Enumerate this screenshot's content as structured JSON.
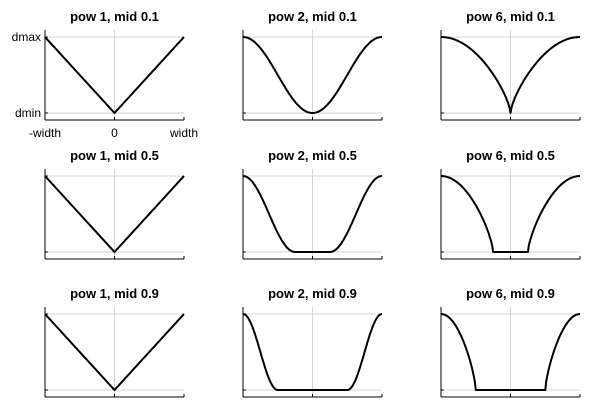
{
  "colors": {
    "curve": "#000000",
    "axis": "#000000",
    "grid": "#d4d4d4",
    "text": "#000000"
  },
  "chart_data": [
    {
      "type": "line",
      "title": "pow 1, mid 0.1",
      "power": 1,
      "mid": 0.1,
      "grid": true,
      "xlim": [
        -1,
        1
      ],
      "ylim": [
        0,
        1
      ],
      "x_tick_labels": [
        "-width",
        "0",
        "width"
      ],
      "y_tick_labels": [
        "dmin",
        "dmax"
      ]
    },
    {
      "type": "line",
      "title": "pow 2, mid 0.1",
      "power": 2,
      "mid": 0.1,
      "grid": true,
      "xlim": [
        -1,
        1
      ],
      "ylim": [
        0,
        1
      ]
    },
    {
      "type": "line",
      "title": "pow 6, mid 0.1",
      "power": 6,
      "mid": 0.1,
      "grid": true,
      "xlim": [
        -1,
        1
      ],
      "ylim": [
        0,
        1
      ]
    },
    {
      "type": "line",
      "title": "pow 1, mid 0.5",
      "power": 1,
      "mid": 0.5,
      "grid": true,
      "xlim": [
        -1,
        1
      ],
      "ylim": [
        0,
        1
      ]
    },
    {
      "type": "line",
      "title": "pow 2, mid 0.5",
      "power": 2,
      "mid": 0.5,
      "grid": true,
      "xlim": [
        -1,
        1
      ],
      "ylim": [
        0,
        1
      ]
    },
    {
      "type": "line",
      "title": "pow 6, mid 0.5",
      "power": 6,
      "mid": 0.5,
      "grid": true,
      "xlim": [
        -1,
        1
      ],
      "ylim": [
        0,
        1
      ]
    },
    {
      "type": "line",
      "title": "pow 1, mid 0.9",
      "power": 1,
      "mid": 0.9,
      "grid": true,
      "xlim": [
        -1,
        1
      ],
      "ylim": [
        0,
        1
      ]
    },
    {
      "type": "line",
      "title": "pow 2, mid 0.9",
      "power": 2,
      "mid": 0.9,
      "grid": true,
      "xlim": [
        -1,
        1
      ],
      "ylim": [
        0,
        1
      ]
    },
    {
      "type": "line",
      "title": "pow 6, mid 0.9",
      "power": 6,
      "mid": 0.9,
      "grid": true,
      "xlim": [
        -1,
        1
      ],
      "ylim": [
        0,
        1
      ]
    }
  ]
}
